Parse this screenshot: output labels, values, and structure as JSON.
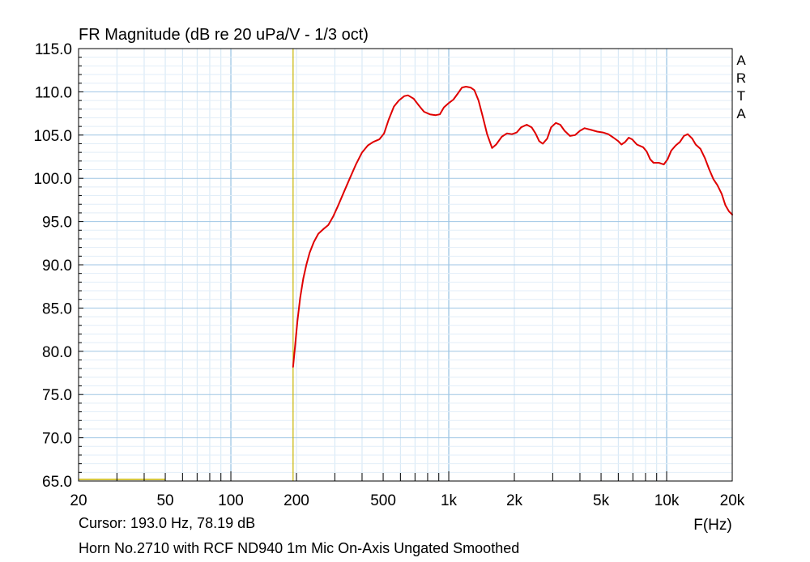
{
  "chart_data": {
    "type": "line",
    "title": "FR Magnitude (dB re 20 uPa/V - 1/3 oct)",
    "xlabel": "F(Hz)",
    "ylabel": "",
    "x_scale": "log",
    "xlim": [
      20,
      20000
    ],
    "ylim": [
      65,
      115
    ],
    "grid": true,
    "x_tick_labels": [
      {
        "value": 20,
        "label": "20"
      },
      {
        "value": 50,
        "label": "50"
      },
      {
        "value": 100,
        "label": "100"
      },
      {
        "value": 200,
        "label": "200"
      },
      {
        "value": 500,
        "label": "500"
      },
      {
        "value": 1000,
        "label": "1k"
      },
      {
        "value": 2000,
        "label": "2k"
      },
      {
        "value": 5000,
        "label": "5k"
      },
      {
        "value": 10000,
        "label": "10k"
      },
      {
        "value": 20000,
        "label": "20k"
      }
    ],
    "y_tick_labels": [
      "115.0",
      "110.0",
      "105.0",
      "100.0",
      "95.0",
      "90.0",
      "85.0",
      "80.0",
      "75.0",
      "70.0",
      "65.0"
    ],
    "y_ticks": [
      115,
      110,
      105,
      100,
      95,
      90,
      85,
      80,
      75,
      70,
      65
    ],
    "cursor_x": 193.0,
    "series": [
      {
        "color": "#e00000",
        "points": [
          [
            193,
            78.2
          ],
          [
            197,
            80.5
          ],
          [
            202,
            83.5
          ],
          [
            208,
            86.2
          ],
          [
            215,
            88.4
          ],
          [
            222,
            90.0
          ],
          [
            230,
            91.4
          ],
          [
            240,
            92.6
          ],
          [
            252,
            93.6
          ],
          [
            265,
            94.1
          ],
          [
            280,
            94.6
          ],
          [
            295,
            95.6
          ],
          [
            310,
            96.8
          ],
          [
            330,
            98.4
          ],
          [
            350,
            99.9
          ],
          [
            375,
            101.6
          ],
          [
            400,
            103.0
          ],
          [
            425,
            103.8
          ],
          [
            450,
            104.2
          ],
          [
            480,
            104.5
          ],
          [
            505,
            105.2
          ],
          [
            530,
            106.8
          ],
          [
            560,
            108.3
          ],
          [
            590,
            109.0
          ],
          [
            625,
            109.5
          ],
          [
            650,
            109.6
          ],
          [
            690,
            109.2
          ],
          [
            730,
            108.4
          ],
          [
            770,
            107.7
          ],
          [
            820,
            107.4
          ],
          [
            870,
            107.3
          ],
          [
            910,
            107.4
          ],
          [
            950,
            108.2
          ],
          [
            1000,
            108.7
          ],
          [
            1050,
            109.1
          ],
          [
            1100,
            109.8
          ],
          [
            1150,
            110.5
          ],
          [
            1200,
            110.6
          ],
          [
            1260,
            110.5
          ],
          [
            1310,
            110.2
          ],
          [
            1370,
            109.0
          ],
          [
            1430,
            107.2
          ],
          [
            1500,
            105.1
          ],
          [
            1580,
            103.5
          ],
          [
            1650,
            103.9
          ],
          [
            1750,
            104.8
          ],
          [
            1850,
            105.2
          ],
          [
            1950,
            105.1
          ],
          [
            2050,
            105.3
          ],
          [
            2150,
            105.9
          ],
          [
            2280,
            106.2
          ],
          [
            2400,
            105.9
          ],
          [
            2500,
            105.2
          ],
          [
            2600,
            104.3
          ],
          [
            2700,
            104.0
          ],
          [
            2830,
            104.6
          ],
          [
            2950,
            105.9
          ],
          [
            3100,
            106.4
          ],
          [
            3250,
            106.2
          ],
          [
            3400,
            105.5
          ],
          [
            3600,
            104.9
          ],
          [
            3800,
            105.0
          ],
          [
            4000,
            105.5
          ],
          [
            4200,
            105.8
          ],
          [
            4500,
            105.6
          ],
          [
            4800,
            105.4
          ],
          [
            5100,
            105.3
          ],
          [
            5400,
            105.1
          ],
          [
            5700,
            104.7
          ],
          [
            6000,
            104.3
          ],
          [
            6200,
            103.9
          ],
          [
            6450,
            104.2
          ],
          [
            6700,
            104.7
          ],
          [
            6950,
            104.5
          ],
          [
            7300,
            103.9
          ],
          [
            7800,
            103.6
          ],
          [
            8100,
            103.1
          ],
          [
            8400,
            102.2
          ],
          [
            8700,
            101.8
          ],
          [
            9200,
            101.8
          ],
          [
            9700,
            101.6
          ],
          [
            10100,
            102.2
          ],
          [
            10500,
            103.2
          ],
          [
            11000,
            103.8
          ],
          [
            11500,
            104.2
          ],
          [
            12000,
            104.9
          ],
          [
            12500,
            105.1
          ],
          [
            13100,
            104.6
          ],
          [
            13600,
            103.9
          ],
          [
            14300,
            103.4
          ],
          [
            15000,
            102.3
          ],
          [
            15700,
            101.0
          ],
          [
            16400,
            99.9
          ],
          [
            17100,
            99.2
          ],
          [
            17900,
            98.2
          ],
          [
            18600,
            96.9
          ],
          [
            19300,
            96.2
          ],
          [
            20000,
            95.8
          ]
        ]
      }
    ],
    "annotations": [
      "A",
      "R",
      "T",
      "A"
    ]
  },
  "footer": {
    "cursor_text": "Cursor: 193.0 Hz, 78.19 dB",
    "description": "Horn No.2710 with RCF ND940 1m Mic On-Axis Ungated Smoothed"
  }
}
